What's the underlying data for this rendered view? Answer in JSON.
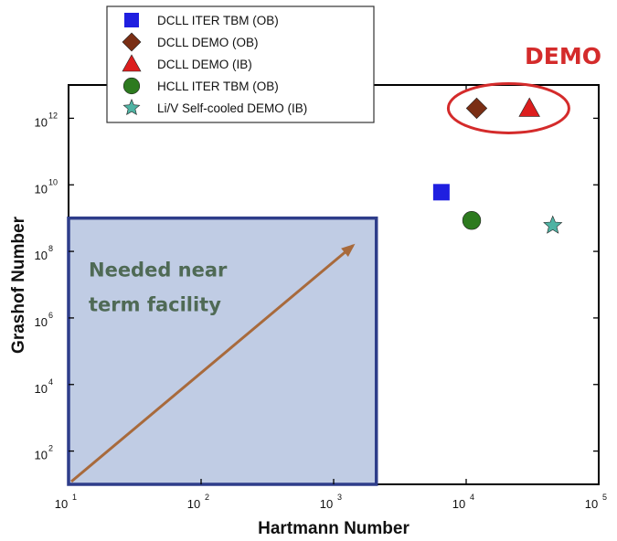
{
  "chart_data": {
    "type": "scatter",
    "xscale": "log",
    "yscale": "log",
    "xlim": [
      10,
      100000
    ],
    "ylim": [
      10,
      10000000000000
    ],
    "xlabel": "Hartmann Number",
    "ylabel": "Grashof Number",
    "x_ticks": [
      {
        "value": 10,
        "base": "10",
        "exp": "1"
      },
      {
        "value": 100,
        "base": "10",
        "exp": "2"
      },
      {
        "value": 1000,
        "base": "10",
        "exp": "3"
      },
      {
        "value": 10000,
        "base": "10",
        "exp": "4"
      },
      {
        "value": 100000,
        "base": "10",
        "exp": "5"
      }
    ],
    "y_ticks": [
      {
        "value": 100,
        "base": "10",
        "exp": "2"
      },
      {
        "value": 10000,
        "base": "10",
        "exp": "4"
      },
      {
        "value": 1000000,
        "base": "10",
        "exp": "6"
      },
      {
        "value": 100000000,
        "base": "10",
        "exp": "8"
      },
      {
        "value": 10000000000,
        "base": "10",
        "exp": "10"
      },
      {
        "value": 1000000000000,
        "base": "10",
        "exp": "12"
      }
    ],
    "series": [
      {
        "name": "DCLL ITER TBM (OB)",
        "marker": "square",
        "color": "#1f1fe0",
        "points": [
          {
            "x": 6500,
            "y": 6000000000
          }
        ]
      },
      {
        "name": "DCLL DEMO (OB)",
        "marker": "diamond",
        "color": "#7a2e14",
        "points": [
          {
            "x": 12000,
            "y": 2000000000000
          }
        ]
      },
      {
        "name": "DCLL DEMO (IB)",
        "marker": "triangle",
        "color": "#dc1e1e",
        "points": [
          {
            "x": 30000,
            "y": 2000000000000
          }
        ]
      },
      {
        "name": "HCLL ITER TBM (OB)",
        "marker": "circle",
        "color": "#2d7a1f",
        "points": [
          {
            "x": 11000,
            "y": 850000000
          }
        ]
      },
      {
        "name": "Li/V Self-cooled DEMO (IB)",
        "marker": "star",
        "color": "#4fb3a3",
        "points": [
          {
            "x": 45000,
            "y": 600000000
          }
        ]
      }
    ],
    "legend_position": "top-left",
    "annotations": {
      "region": {
        "label_lines": [
          "Needed near",
          "term facility"
        ],
        "x_range": [
          10,
          2100
        ],
        "y_range": [
          10,
          1000000000
        ],
        "fill": "#c0cce4",
        "stroke": "#2e3d8a"
      },
      "arrow": {
        "from": {
          "x": 10,
          "y": 10
        },
        "to": {
          "x": 1400,
          "y": 150000000
        },
        "color": "#a86a3c"
      },
      "highlight": {
        "label": "DEMO",
        "center": {
          "x": 19000,
          "y": 2000000000000
        },
        "color": "#d42b2b"
      }
    }
  }
}
